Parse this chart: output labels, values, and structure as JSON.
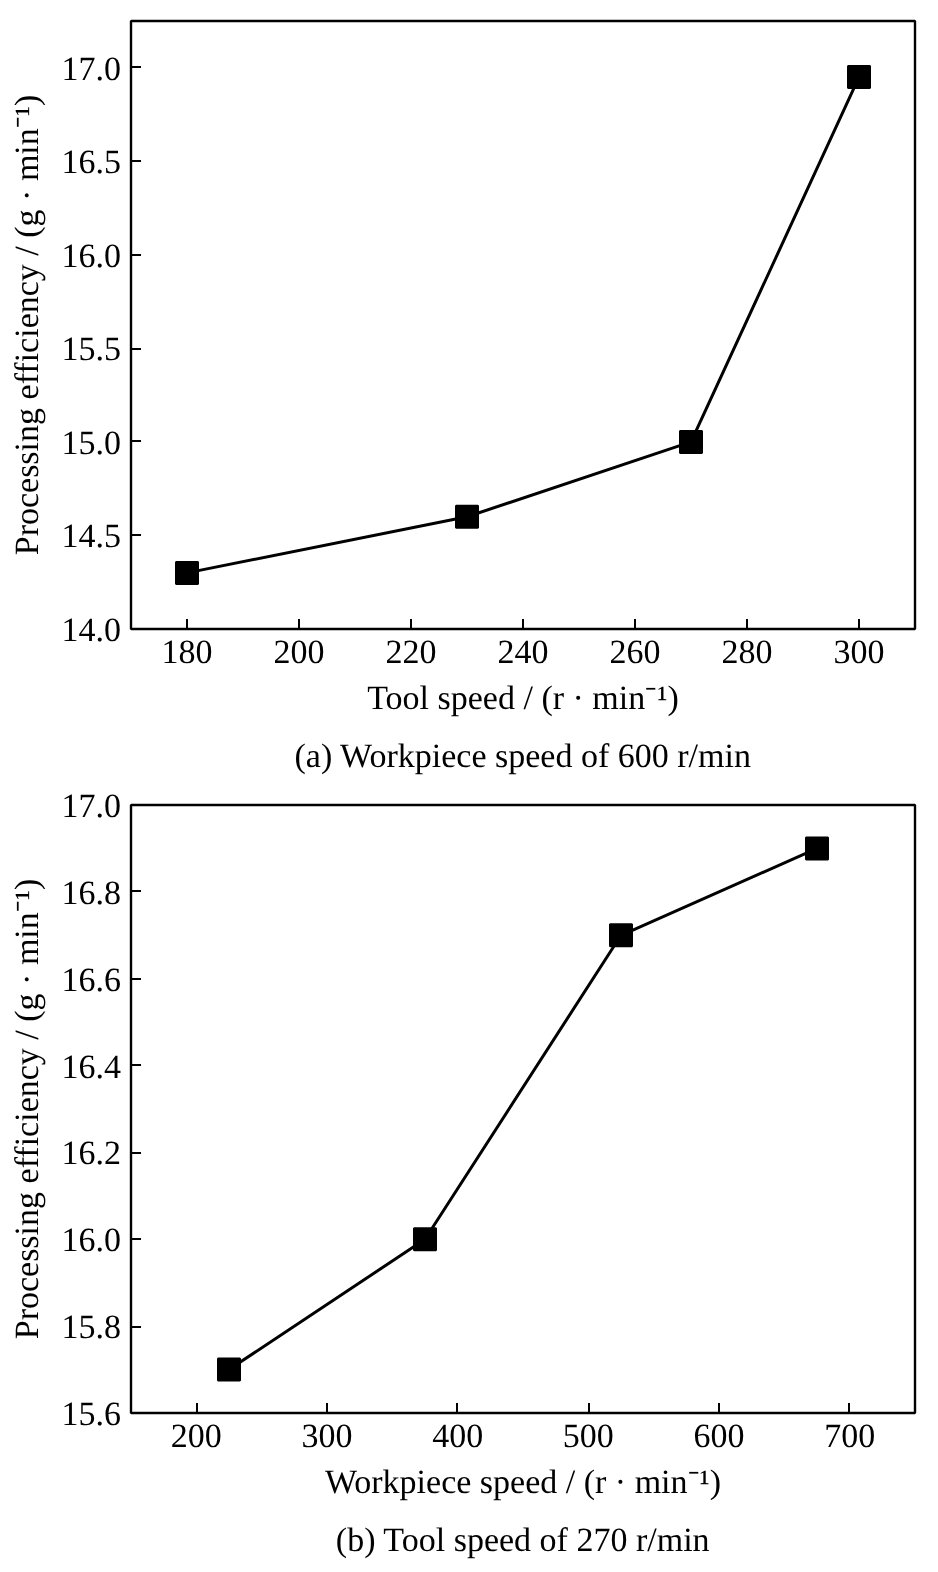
{
  "chart_data": [
    {
      "type": "line",
      "title": "(a) Workpiece speed of 600 r/min",
      "xlabel": "Tool speed / (r · min⁻¹)",
      "ylabel": "Processing efficiency / (g · min⁻¹)",
      "x": [
        180,
        230,
        270,
        300
      ],
      "series": [
        {
          "color": "#000000",
          "values": [
            14.3,
            14.6,
            15.0,
            16.95
          ]
        }
      ],
      "xlim": [
        170,
        310
      ],
      "xticks": [
        180,
        200,
        220,
        240,
        260,
        280,
        300
      ],
      "ylim": [
        14.0,
        17.25
      ],
      "yticks": [
        {
          "value": 14.0,
          "label": "14.0"
        },
        14.5,
        {
          "value": 15.0,
          "label": "15.0"
        },
        15.5,
        {
          "value": 16.0,
          "label": "16.0"
        },
        16.5,
        {
          "value": 17.0,
          "label": "17.0"
        }
      ],
      "marker": "square",
      "grid": false
    },
    {
      "type": "line",
      "title": "(b) Tool speed of 270 r/min",
      "xlabel": "Workpiece speed / (r · min⁻¹)",
      "ylabel": "Processing efficiency / (g · min⁻¹)",
      "x": [
        225,
        375,
        525,
        675
      ],
      "series": [
        {
          "color": "#000000",
          "values": [
            15.7,
            16.0,
            16.7,
            16.9
          ]
        }
      ],
      "xlim": [
        150,
        750
      ],
      "xticks": [
        200,
        300,
        400,
        500,
        600,
        700
      ],
      "ylim": [
        15.6,
        17.0
      ],
      "yticks": [
        15.6,
        15.8,
        {
          "value": 16.0,
          "label": "16.0"
        },
        16.2,
        16.4,
        16.6,
        16.8,
        {
          "value": 17.0,
          "label": "17.0"
        }
      ],
      "marker": "square",
      "grid": false
    }
  ]
}
